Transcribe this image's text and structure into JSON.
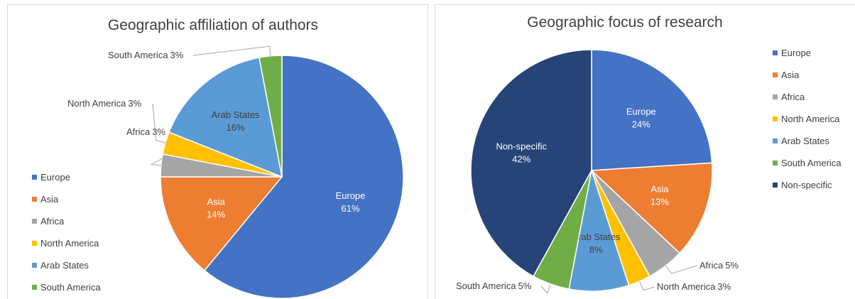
{
  "chart_data": [
    {
      "type": "pie",
      "title": "Geographic affiliation of authors",
      "categories": [
        "Europe",
        "Asia",
        "Africa",
        "North America",
        "Arab States",
        "South America"
      ],
      "values": [
        61,
        14,
        3,
        3,
        16,
        3
      ],
      "value_labels": [
        "61%",
        "14%",
        "3%",
        "3%",
        "16%",
        "3%"
      ],
      "colors": [
        "#4472c4",
        "#ed7d31",
        "#a5a5a5",
        "#ffc000",
        "#5b9bd5",
        "#70ad47"
      ],
      "legend": "left"
    },
    {
      "type": "pie",
      "title": "Geographic focus of research",
      "categories": [
        "Europe",
        "Asia",
        "Africa",
        "North America",
        "Arab States",
        "South America",
        "Non-specific"
      ],
      "values": [
        24,
        13,
        5,
        3,
        8,
        5,
        42
      ],
      "value_labels": [
        "24%",
        "13%",
        "5%",
        "3%",
        "8%",
        "5%",
        "42%"
      ],
      "colors": [
        "#4472c4",
        "#ed7d31",
        "#a5a5a5",
        "#ffc000",
        "#5b9bd5",
        "#70ad47",
        "#264478"
      ],
      "legend": "right"
    }
  ]
}
